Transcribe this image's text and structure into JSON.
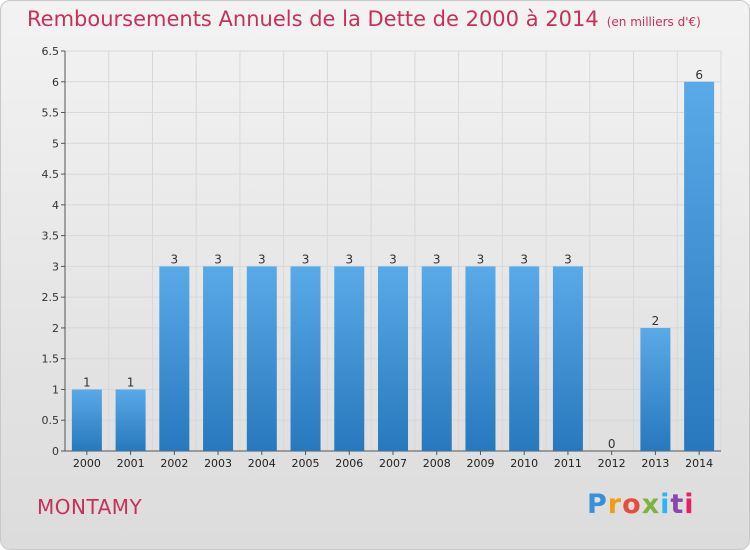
{
  "title": "Remboursements Annuels de la Dette de 2000 à 2014",
  "unit": "(en milliers d'€)",
  "commune": "MONTAMY",
  "logo": {
    "text": "Proxiti"
  },
  "colors": {
    "bar_top": "#5aaae8",
    "bar_bottom": "#2778bd",
    "title": "#c8305a",
    "grid": "#d8d8d8"
  },
  "chart_data": {
    "type": "bar",
    "title": "Remboursements Annuels de la Dette de 2000 à 2014",
    "subtitle": "(en milliers d'€)",
    "xlabel": "",
    "ylabel": "",
    "categories": [
      "2000",
      "2001",
      "2002",
      "2003",
      "2004",
      "2005",
      "2006",
      "2007",
      "2008",
      "2009",
      "2010",
      "2011",
      "2012",
      "2013",
      "2014"
    ],
    "values": [
      1,
      1,
      3,
      3,
      3,
      3,
      3,
      3,
      3,
      3,
      3,
      3,
      0,
      2,
      6
    ],
    "data_labels": [
      "1",
      "1",
      "3",
      "3",
      "3",
      "3",
      "3",
      "3",
      "3",
      "3",
      "3",
      "3",
      "0",
      "2",
      "6"
    ],
    "ylim": [
      0,
      6.5
    ],
    "yticks": [
      "0",
      "0.5",
      "1",
      "1.5",
      "2",
      "2.5",
      "3",
      "3.5",
      "4",
      "4.5",
      "5",
      "5.5",
      "6",
      "6.5"
    ],
    "grid": true,
    "legend": "none"
  }
}
